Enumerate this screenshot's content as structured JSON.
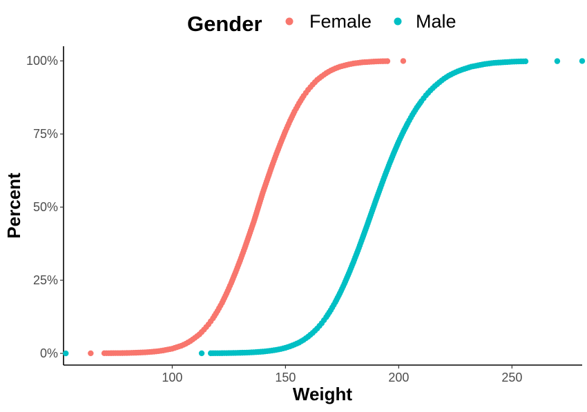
{
  "chart_data": {
    "type": "scatter",
    "title": "",
    "xlabel": "Weight",
    "ylabel": "Percent",
    "xlim": [
      52,
      281
    ],
    "ylim": [
      -0.04,
      1.05
    ],
    "x_ticks": [
      100,
      150,
      200,
      250
    ],
    "y_ticks": [
      0,
      0.25,
      0.5,
      0.75,
      1.0
    ],
    "y_tick_labels": [
      "0%",
      "25%",
      "50%",
      "75%",
      "100%"
    ],
    "grid": false,
    "legend": {
      "title": "Gender",
      "position": "top"
    },
    "series": [
      {
        "name": "Female",
        "color": "#F8766D",
        "points": [
          [
            64,
            0.0003
          ],
          [
            70,
            0.0005
          ],
          [
            73,
            0.0007
          ],
          [
            75,
            0.0008
          ],
          [
            78,
            0.001
          ],
          [
            80,
            0.0013
          ],
          [
            82,
            0.0017
          ],
          [
            84,
            0.0022
          ],
          [
            86,
            0.0028
          ],
          [
            88,
            0.0036
          ],
          [
            90,
            0.0047
          ],
          [
            92,
            0.006
          ],
          [
            94,
            0.0077
          ],
          [
            96,
            0.0099
          ],
          [
            98,
            0.013
          ],
          [
            100,
            0.016
          ],
          [
            102,
            0.021
          ],
          [
            104,
            0.026
          ],
          [
            106,
            0.033
          ],
          [
            108,
            0.042
          ],
          [
            110,
            0.053
          ],
          [
            112,
            0.065
          ],
          [
            114,
            0.081
          ],
          [
            116,
            0.099
          ],
          [
            118,
            0.12
          ],
          [
            120,
            0.145
          ],
          [
            122,
            0.173
          ],
          [
            124,
            0.205
          ],
          [
            126,
            0.24
          ],
          [
            128,
            0.278
          ],
          [
            130,
            0.318
          ],
          [
            132,
            0.36
          ],
          [
            134,
            0.405
          ],
          [
            136,
            0.45
          ],
          [
            138,
            0.5
          ],
          [
            140,
            0.55
          ],
          [
            142,
            0.595
          ],
          [
            144,
            0.64
          ],
          [
            146,
            0.682
          ],
          [
            148,
            0.722
          ],
          [
            150,
            0.76
          ],
          [
            152,
            0.795
          ],
          [
            154,
            0.827
          ],
          [
            156,
            0.855
          ],
          [
            158,
            0.88
          ],
          [
            160,
            0.901
          ],
          [
            162,
            0.919
          ],
          [
            164,
            0.935
          ],
          [
            166,
            0.947
          ],
          [
            168,
            0.958
          ],
          [
            170,
            0.967
          ],
          [
            172,
            0.974
          ],
          [
            174,
            0.98
          ],
          [
            176,
            0.984
          ],
          [
            178,
            0.988
          ],
          [
            180,
            0.991
          ],
          [
            182,
            0.993
          ],
          [
            184,
            0.995
          ],
          [
            186,
            0.996
          ],
          [
            188,
            0.997
          ],
          [
            190,
            0.998
          ],
          [
            192,
            0.9985
          ],
          [
            195,
            0.999
          ],
          [
            202,
            0.9995
          ]
        ]
      },
      {
        "name": "Male",
        "color": "#00BFC4",
        "points": [
          [
            53,
            0.0
          ],
          [
            113,
            0.0003
          ],
          [
            117,
            0.0004
          ],
          [
            120,
            0.0006
          ],
          [
            122,
            0.0007
          ],
          [
            124,
            0.0009
          ],
          [
            126,
            0.0012
          ],
          [
            128,
            0.0015
          ],
          [
            130,
            0.0019
          ],
          [
            132,
            0.0024
          ],
          [
            134,
            0.003
          ],
          [
            136,
            0.0038
          ],
          [
            138,
            0.0048
          ],
          [
            140,
            0.006
          ],
          [
            142,
            0.0076
          ],
          [
            144,
            0.0096
          ],
          [
            146,
            0.012
          ],
          [
            148,
            0.015
          ],
          [
            150,
            0.019
          ],
          [
            152,
            0.024
          ],
          [
            154,
            0.03
          ],
          [
            156,
            0.037
          ],
          [
            158,
            0.046
          ],
          [
            160,
            0.057
          ],
          [
            162,
            0.07
          ],
          [
            164,
            0.085
          ],
          [
            166,
            0.103
          ],
          [
            168,
            0.124
          ],
          [
            170,
            0.148
          ],
          [
            172,
            0.175
          ],
          [
            174,
            0.205
          ],
          [
            176,
            0.238
          ],
          [
            178,
            0.274
          ],
          [
            180,
            0.312
          ],
          [
            182,
            0.352
          ],
          [
            184,
            0.394
          ],
          [
            186,
            0.437
          ],
          [
            188,
            0.481
          ],
          [
            190,
            0.525
          ],
          [
            192,
            0.568
          ],
          [
            194,
            0.61
          ],
          [
            196,
            0.65
          ],
          [
            198,
            0.688
          ],
          [
            200,
            0.724
          ],
          [
            202,
            0.757
          ],
          [
            204,
            0.787
          ],
          [
            206,
            0.815
          ],
          [
            208,
            0.84
          ],
          [
            210,
            0.862
          ],
          [
            212,
            0.882
          ],
          [
            214,
            0.899
          ],
          [
            216,
            0.914
          ],
          [
            218,
            0.927
          ],
          [
            220,
            0.939
          ],
          [
            222,
            0.949
          ],
          [
            224,
            0.957
          ],
          [
            226,
            0.964
          ],
          [
            228,
            0.97
          ],
          [
            230,
            0.975
          ],
          [
            232,
            0.98
          ],
          [
            234,
            0.983
          ],
          [
            236,
            0.986
          ],
          [
            238,
            0.989
          ],
          [
            240,
            0.991
          ],
          [
            242,
            0.993
          ],
          [
            244,
            0.994
          ],
          [
            246,
            0.995
          ],
          [
            248,
            0.996
          ],
          [
            250,
            0.997
          ],
          [
            253,
            0.998
          ],
          [
            256,
            0.9985
          ],
          [
            270,
            0.999
          ],
          [
            281,
            0.9995
          ]
        ]
      }
    ]
  }
}
